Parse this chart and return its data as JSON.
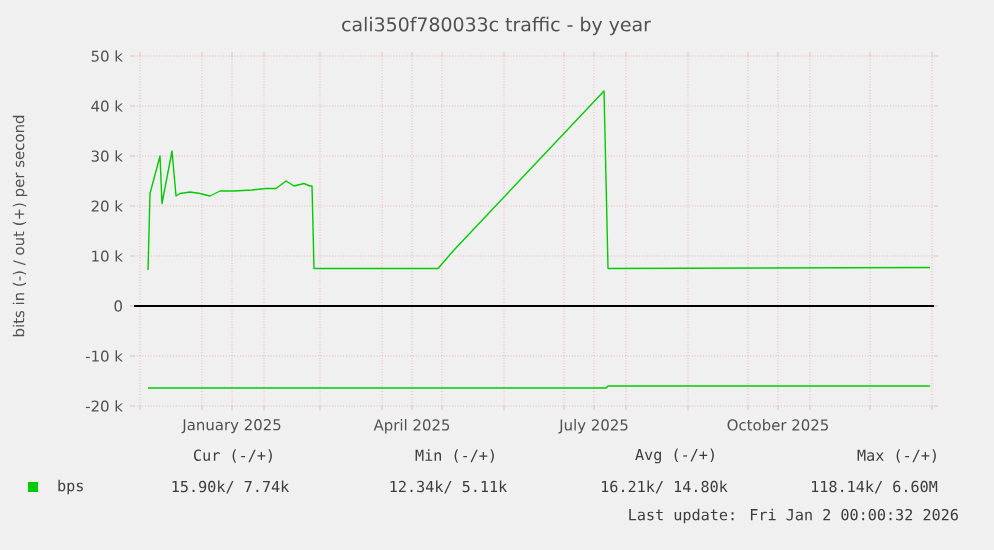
{
  "chart_data": {
    "type": "line",
    "title": "cali350f780033c traffic - by year",
    "ylabel": "bits in (-) / out (+) per second",
    "xlim": [
      "2024-11-28",
      "2026-01-02"
    ],
    "xticks": [
      {
        "value": "2024-12-01",
        "label": null
      },
      {
        "value": "2025-01-01",
        "label": null
      },
      {
        "value": "2025-01-16",
        "label": "January 2025"
      },
      {
        "value": "2025-02-01",
        "label": null
      },
      {
        "value": "2025-03-01",
        "label": null
      },
      {
        "value": "2025-04-01",
        "label": null
      },
      {
        "value": "2025-04-16",
        "label": "April 2025"
      },
      {
        "value": "2025-05-01",
        "label": null
      },
      {
        "value": "2025-06-01",
        "label": null
      },
      {
        "value": "2025-07-01",
        "label": null
      },
      {
        "value": "2025-07-16",
        "label": "July 2025"
      },
      {
        "value": "2025-08-01",
        "label": null
      },
      {
        "value": "2025-09-01",
        "label": null
      },
      {
        "value": "2025-10-01",
        "label": null
      },
      {
        "value": "2025-10-16",
        "label": "October 2025"
      },
      {
        "value": "2025-11-01",
        "label": null
      },
      {
        "value": "2025-12-01",
        "label": null
      },
      {
        "value": "2026-01-01",
        "label": null
      }
    ],
    "ylim": [
      -20000,
      50000
    ],
    "yticks": [
      {
        "value": -20000,
        "label": "-20 k"
      },
      {
        "value": -10000,
        "label": "-10 k"
      },
      {
        "value": 0,
        "label": "0"
      },
      {
        "value": 10000,
        "label": "10 k"
      },
      {
        "value": 20000,
        "label": "20 k"
      },
      {
        "value": 30000,
        "label": "30 k"
      },
      {
        "value": 40000,
        "label": "40 k"
      },
      {
        "value": 50000,
        "label": "50 k"
      }
    ],
    "grid": true,
    "legend": "bottom left",
    "marker": "none",
    "line_style": "solid",
    "ref_lines": [
      {
        "axis": "y",
        "value": 0,
        "color": "#000000"
      }
    ],
    "series": [
      {
        "name": "bps",
        "color": "#00cc00",
        "x": [
          "2024-12-05",
          "2024-12-06",
          "2024-12-11",
          "2024-12-12",
          "2024-12-17",
          "2024-12-19",
          "2024-12-21",
          "2024-12-26",
          "2024-12-31",
          "2025-01-05",
          "2025-01-10",
          "2025-01-17",
          "2025-01-26",
          "2025-02-02",
          "2025-02-07",
          "2025-02-12",
          "2025-02-16",
          "2025-02-21",
          "2025-02-24",
          "2025-02-25",
          "2025-02-26",
          "2025-04-29",
          "2025-05-07",
          "2025-07-21",
          "2025-07-23",
          "2025-12-31"
        ],
        "values": [
          7200,
          22500,
          30000,
          20500,
          31000,
          22000,
          22500,
          22800,
          22500,
          22000,
          23000,
          23000,
          23200,
          23500,
          23500,
          25000,
          24000,
          24500,
          24000,
          24000,
          7500,
          7500,
          11200,
          43000,
          7500,
          7700
        ]
      },
      {
        "color": "#00cc00",
        "x": [
          "2024-12-05",
          "2025-07-22",
          "2025-07-23",
          "2025-12-31"
        ],
        "values": [
          -16400,
          -16400,
          -16000,
          -16000
        ]
      }
    ],
    "annotations": [
      "Cur (-/+)",
      "Min (-/+)",
      "Avg (-/+)",
      "Max (-/+)",
      "15.90k/ 7.74k",
      "12.34k/ 5.11k",
      "16.21k/ 14.80k",
      "118.14k/ 6.60M",
      "Last update: Fri Jan 2 00:00:32 2026"
    ]
  }
}
